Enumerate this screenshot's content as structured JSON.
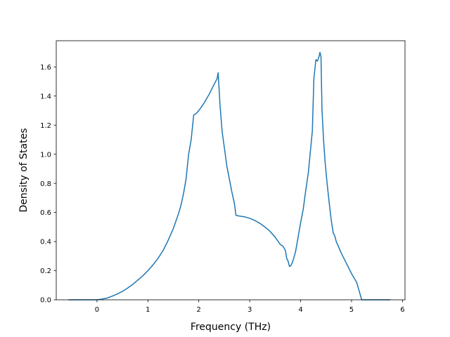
{
  "chart_data": {
    "type": "line",
    "title": "",
    "xlabel": "Frequency (THz)",
    "ylabel": "Density of States",
    "xlim": [
      -0.8,
      6.05
    ],
    "ylim": [
      0.0,
      1.78
    ],
    "xticks": [
      0,
      1,
      2,
      3,
      4,
      5,
      6
    ],
    "yticks": [
      0.0,
      0.2,
      0.4,
      0.6,
      0.8,
      1.0,
      1.2,
      1.4,
      1.6
    ],
    "ytick_labels": [
      "0.0",
      "0.2",
      "0.4",
      "0.6",
      "0.8",
      "1.0",
      "1.2",
      "1.4",
      "1.6"
    ],
    "grid": false,
    "series": [
      {
        "color": "#1f77b4",
        "x": [
          -0.55,
          0.0,
          0.1,
          0.2,
          0.3,
          0.4,
          0.5,
          0.6,
          0.7,
          0.8,
          0.9,
          1.0,
          1.1,
          1.2,
          1.3,
          1.4,
          1.5,
          1.6,
          1.65,
          1.7,
          1.75,
          1.77,
          1.8,
          1.85,
          1.9,
          1.95,
          2.0,
          2.1,
          2.2,
          2.3,
          2.36,
          2.38,
          2.42,
          2.46,
          2.5,
          2.55,
          2.6,
          2.65,
          2.7,
          2.73,
          2.8,
          2.9,
          3.0,
          3.1,
          3.2,
          3.3,
          3.4,
          3.5,
          3.6,
          3.65,
          3.7,
          3.73,
          3.75,
          3.78,
          3.8,
          3.83,
          3.86,
          3.9,
          3.95,
          4.0,
          4.05,
          4.1,
          4.15,
          4.2,
          4.23,
          4.26,
          4.3,
          4.33,
          4.36,
          4.38,
          4.4,
          4.42,
          4.45,
          4.48,
          4.52,
          4.56,
          4.6,
          4.64,
          4.67,
          4.7,
          4.8,
          4.9,
          5.0,
          5.1,
          5.15,
          5.2,
          5.22,
          5.3,
          5.5,
          5.75
        ],
        "y": [
          0.0,
          0.0,
          0.005,
          0.012,
          0.025,
          0.04,
          0.058,
          0.08,
          0.105,
          0.135,
          0.165,
          0.2,
          0.24,
          0.285,
          0.34,
          0.41,
          0.49,
          0.59,
          0.65,
          0.73,
          0.83,
          0.9,
          1.0,
          1.1,
          1.27,
          1.28,
          1.3,
          1.35,
          1.41,
          1.48,
          1.52,
          1.56,
          1.32,
          1.15,
          1.05,
          0.92,
          0.83,
          0.74,
          0.66,
          0.58,
          0.575,
          0.57,
          0.56,
          0.545,
          0.525,
          0.5,
          0.47,
          0.43,
          0.38,
          0.37,
          0.34,
          0.28,
          0.27,
          0.23,
          0.23,
          0.25,
          0.28,
          0.33,
          0.43,
          0.53,
          0.62,
          0.75,
          0.87,
          1.05,
          1.16,
          1.52,
          1.65,
          1.64,
          1.67,
          1.7,
          1.67,
          1.3,
          1.1,
          0.95,
          0.8,
          0.67,
          0.55,
          0.46,
          0.44,
          0.4,
          0.32,
          0.25,
          0.18,
          0.12,
          0.06,
          0.0,
          0.0,
          0.0,
          0.0,
          0.0
        ]
      }
    ]
  }
}
